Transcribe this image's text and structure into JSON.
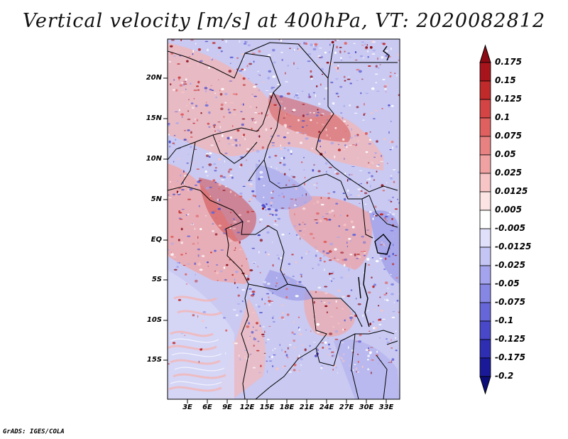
{
  "title": "Vertical velocity [m/s] at 400hPa, VT: 2020082812",
  "footer": "GrADS: IGES/COLA",
  "map": {
    "variable": "Vertical velocity",
    "units": "m/s",
    "level": "400hPa",
    "valid_time": "2020082812",
    "lat_labels": [
      "20N",
      "15N",
      "10N",
      "5N",
      "EQ",
      "5S",
      "10S",
      "15S"
    ],
    "lon_labels": [
      "3E",
      "6E",
      "9E",
      "12E",
      "15E",
      "18E",
      "21E",
      "24E",
      "27E",
      "30E",
      "33E"
    ]
  },
  "colorbar": {
    "labels": [
      "0.175",
      "0.15",
      "0.125",
      "0.1",
      "0.075",
      "0.05",
      "0.025",
      "0.0125",
      "0.005",
      "-0.005",
      "-0.0125",
      "-0.025",
      "-0.05",
      "-0.075",
      "-0.1",
      "-0.125",
      "-0.175",
      "-0.2"
    ],
    "colors": [
      "#8c0a14",
      "#a8141c",
      "#c12a2a",
      "#d44444",
      "#e06060",
      "#e88282",
      "#f0a2a2",
      "#f7c5c5",
      "#fce4e4",
      "#ffffff",
      "#e0e0fb",
      "#c4c4f5",
      "#a4a4ee",
      "#8686e4",
      "#6666d8",
      "#4848c8",
      "#2e2eb2",
      "#1a1a98",
      "#0c0c7a"
    ]
  }
}
